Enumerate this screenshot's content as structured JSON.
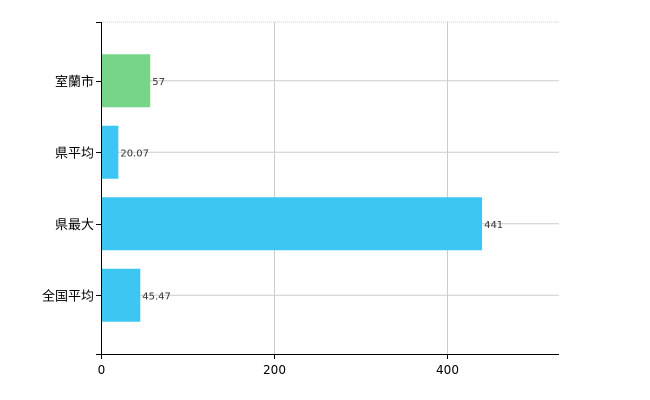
{
  "chart_data": {
    "type": "bar",
    "orientation": "horizontal",
    "categories": [
      "室蘭市",
      "県平均",
      "県最大",
      "全国平均"
    ],
    "values": [
      57,
      20.07,
      441,
      45.47
    ],
    "value_labels": [
      "57",
      "20.07",
      "441",
      "45.47"
    ],
    "bar_colors": [
      "#77d58a",
      "#3ec6f3",
      "#3ec6f3",
      "#3ec6f3"
    ],
    "xlim": [
      0,
      530
    ],
    "x_ticks": [
      0,
      200,
      400
    ],
    "x_tick_labels": [
      "0",
      "200",
      "400"
    ],
    "grid": true,
    "title": "",
    "xlabel": "",
    "ylabel": ""
  }
}
